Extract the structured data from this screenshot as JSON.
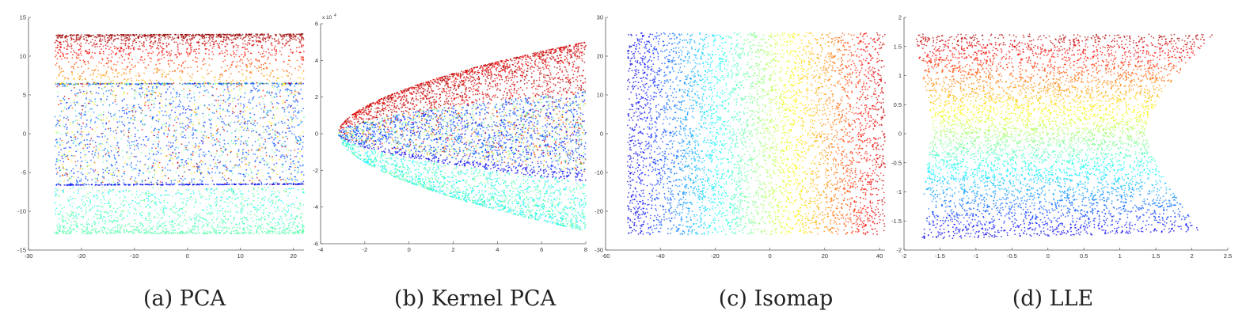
{
  "figure": {
    "panels": [
      {
        "id": "a",
        "caption": "(a) PCA"
      },
      {
        "id": "b",
        "caption": "(b) Kernel PCA"
      },
      {
        "id": "c",
        "caption": "(c) Isomap"
      },
      {
        "id": "d",
        "caption": "(d) LLE"
      }
    ]
  },
  "colors": {
    "colormap": "jet",
    "stops": [
      "#00008f",
      "#0000ff",
      "#0080ff",
      "#00ffff",
      "#80ff80",
      "#ffff00",
      "#ff8000",
      "#ff0000",
      "#800000"
    ]
  },
  "chart_data": [
    {
      "type": "scatter",
      "title": "",
      "xlabel": "",
      "ylabel": "",
      "xlim": [
        -30,
        22
      ],
      "ylim": [
        -15,
        15
      ],
      "xticks": [
        -30,
        -20,
        -10,
        0,
        10,
        20
      ],
      "yticks": [
        -15,
        -10,
        -5,
        0,
        5,
        10,
        15
      ],
      "grid": false,
      "color_encoding": "jet colormap",
      "clusters": [
        {
          "x_range": [
            -25,
            22
          ],
          "y_range": [
            6.5,
            12.8
          ],
          "color_range": [
            0.62,
            0.98
          ],
          "density": "dense at y=12.8, fading downward"
        },
        {
          "x_range": [
            -25,
            22
          ],
          "y_range": [
            -6.6,
            6.6
          ],
          "color_range": [
            0.08,
            0.98
          ],
          "density": "dense edges at y=6.6 and y=-6.6, mostly blue"
        },
        {
          "x_range": [
            -25,
            22
          ],
          "y_range": [
            -12.9,
            -6.6
          ],
          "color_range": [
            0.3,
            0.52
          ],
          "density": "dense at y=-12.9, cyan-green"
        }
      ]
    },
    {
      "type": "scatter",
      "title": "",
      "xlabel": "",
      "ylabel": "",
      "xlim": [
        -4,
        8
      ],
      "ylim": [
        -6,
        6
      ],
      "xticks": [
        -4,
        -2,
        0,
        2,
        4,
        6,
        8
      ],
      "yticks": [
        -6,
        -4,
        -2,
        0,
        2,
        4,
        6
      ],
      "y_exponent_label": "x 10",
      "y_exponent_power": "4",
      "grid": false,
      "color_encoding": "jet colormap",
      "clusters": [
        {
          "shape": "parabolic wedge",
          "origin": [
            -3.2,
            0
          ],
          "x_range": [
            -3.2,
            8
          ],
          "y_upper_end": 5.0,
          "y_lower_end": 2.3,
          "color_range": [
            0.85,
            1.0
          ],
          "label": "red upper wedge"
        },
        {
          "shape": "parabolic wedge",
          "origin": [
            -3.2,
            0
          ],
          "x_range": [
            -3.2,
            8
          ],
          "y_upper_end": 2.3,
          "y_lower_end": -2.6,
          "color_range": [
            0.1,
            0.98
          ],
          "label": "blue middle wedge"
        },
        {
          "shape": "parabolic wedge",
          "origin": [
            -3.2,
            0
          ],
          "x_range": [
            -3.2,
            8
          ],
          "y_upper_end": -2.6,
          "y_lower_end": -5.3,
          "color_range": [
            0.32,
            0.52
          ],
          "label": "green lower wedge"
        }
      ]
    },
    {
      "type": "scatter",
      "title": "",
      "xlabel": "",
      "ylabel": "",
      "xlim": [
        -60,
        42
      ],
      "ylim": [
        -30,
        30
      ],
      "xticks": [
        -60,
        -40,
        -20,
        0,
        20,
        40
      ],
      "yticks": [
        -30,
        -20,
        -10,
        0,
        10,
        20,
        30
      ],
      "grid": false,
      "color_encoding": "jet colormap, varies with x",
      "clusters": [
        {
          "x_range": [
            -52,
            42
          ],
          "y_range": [
            -26,
            26
          ],
          "color_by": "x",
          "color_range": [
            0.08,
            0.93
          ]
        }
      ]
    },
    {
      "type": "scatter",
      "title": "",
      "xlabel": "",
      "ylabel": "",
      "xlim": [
        -2,
        2.5
      ],
      "ylim": [
        -2,
        2
      ],
      "xticks": [
        -2,
        -1.5,
        -1,
        -0.5,
        0,
        0.5,
        1,
        1.5,
        2,
        2.5
      ],
      "yticks": [
        -2,
        -1.5,
        -1,
        -0.5,
        0,
        0.5,
        1,
        1.5,
        2
      ],
      "grid": false,
      "color_encoding": "jet colormap, varies with y",
      "clusters": [
        {
          "shape": "hourglass",
          "top_edge": [
            [
              -1.85,
              1.7
            ],
            [
              2.3,
              1.72
            ]
          ],
          "bottom_edge": [
            [
              -1.75,
              -1.85
            ],
            [
              2.2,
              -1.68
            ]
          ],
          "waist_x_range": [
            -1.6,
            1.35
          ],
          "waist_y": 0.1,
          "color_by": "y",
          "color_range": [
            0.08,
            0.96
          ]
        }
      ]
    }
  ]
}
